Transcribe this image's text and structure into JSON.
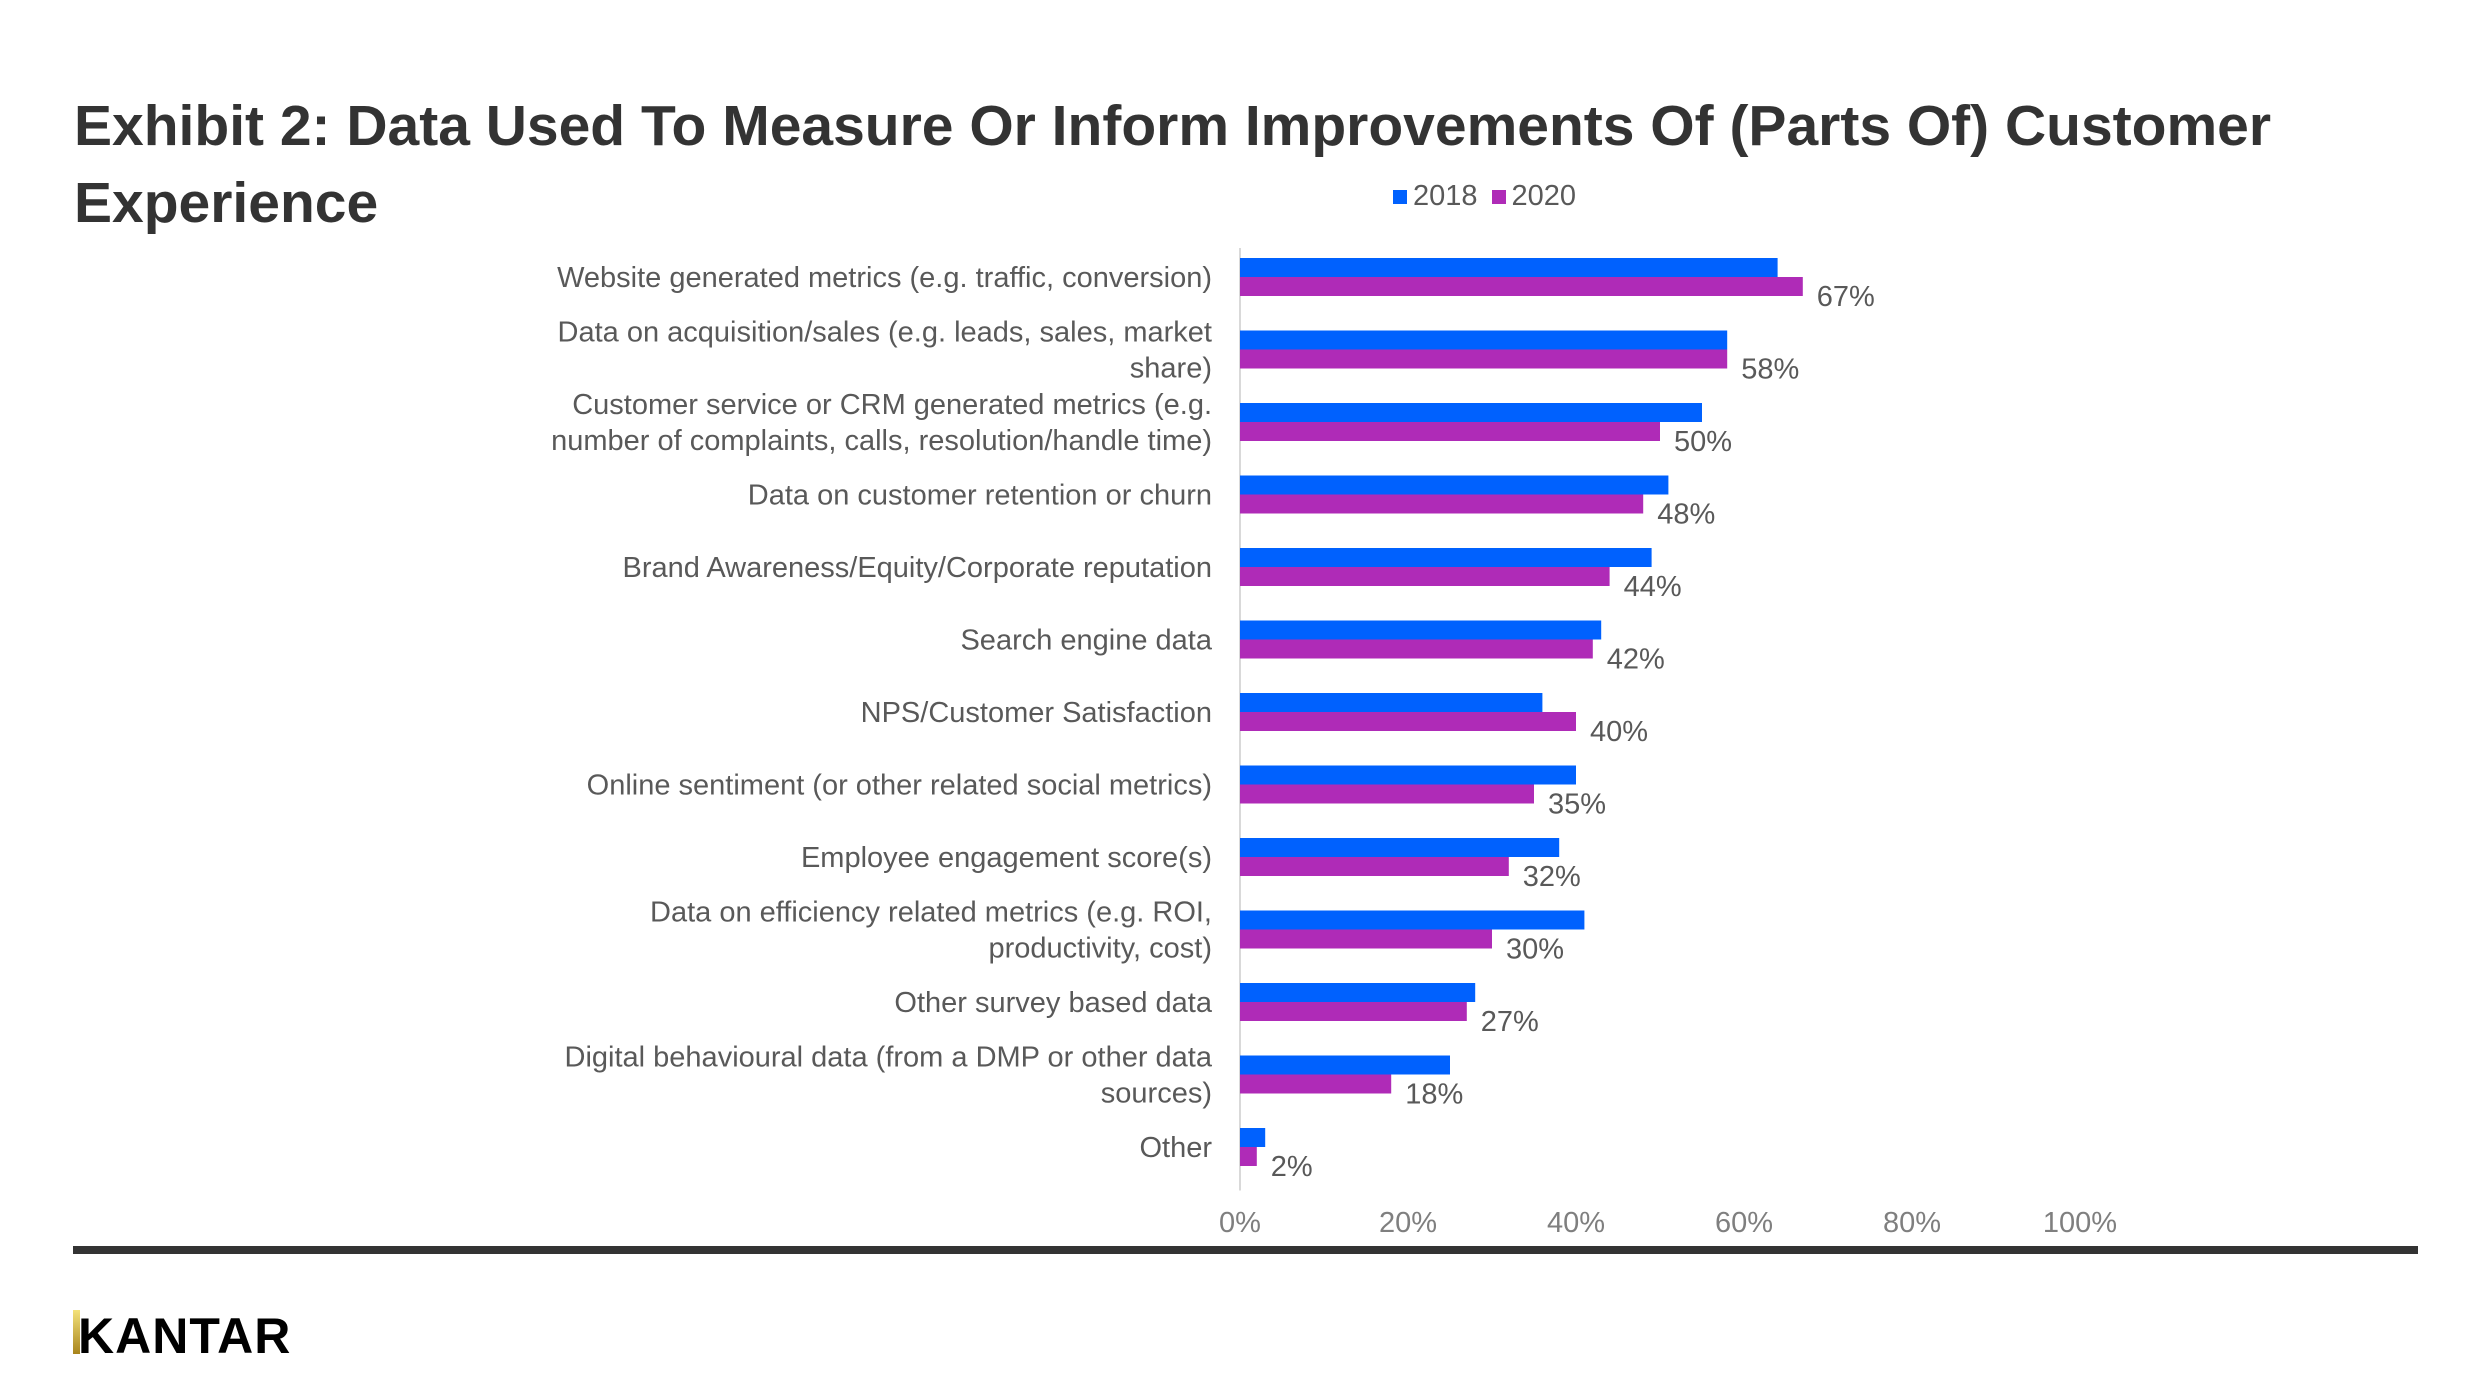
{
  "title": "Exhibit 2: Data Used To Measure Or Inform Improvements Of (Parts Of) Customer Experience",
  "logo": "KANTAR",
  "chart_data": {
    "type": "bar",
    "orientation": "horizontal",
    "title": "Exhibit 2: Data Used To Measure Or Inform Improvements Of (Parts Of) Customer Experience",
    "categories": [
      "Website generated metrics (e.g. traffic, conversion)",
      "Data on acquisition/sales (e.g. leads, sales, market share)",
      "Customer service or CRM generated metrics (e.g. number of complaints, calls, resolution/handle time)",
      "Data on customer retention or churn",
      "Brand Awareness/Equity/Corporate reputation",
      "Search engine data",
      "NPS/Customer Satisfaction",
      "Online sentiment (or other related social metrics)",
      "Employee engagement score(s)",
      "Data on efficiency related metrics (e.g. ROI, productivity, cost)",
      "Other survey based data",
      "Digital behavioural data (from a DMP or other data sources)",
      "Other"
    ],
    "category_lines": [
      [
        "Website generated metrics (e.g. traffic, conversion)"
      ],
      [
        "Data on acquisition/sales (e.g. leads, sales, market",
        "share)"
      ],
      [
        "Customer service or CRM generated metrics (e.g.",
        "number of complaints, calls, resolution/handle time)"
      ],
      [
        "Data on customer retention or churn"
      ],
      [
        "Brand Awareness/Equity/Corporate reputation"
      ],
      [
        "Search engine data"
      ],
      [
        "NPS/Customer Satisfaction"
      ],
      [
        "Online sentiment (or other related social metrics)"
      ],
      [
        "Employee engagement score(s)"
      ],
      [
        "Data on efficiency related metrics (e.g. ROI,",
        "productivity, cost)"
      ],
      [
        "Other survey based data"
      ],
      [
        "Digital behavioural data (from a DMP or other data",
        "sources)"
      ],
      [
        "Other"
      ]
    ],
    "series": [
      {
        "name": "2018",
        "color": "#0061FE",
        "values": [
          64,
          58,
          55,
          51,
          49,
          43,
          36,
          40,
          38,
          41,
          28,
          25,
          3
        ]
      },
      {
        "name": "2020",
        "color": "#AF2BB7",
        "values": [
          67,
          58,
          50,
          48,
          44,
          42,
          40,
          35,
          32,
          30,
          27,
          18,
          2
        ],
        "data_labels": [
          "67%",
          "58%",
          "50%",
          "48%",
          "44%",
          "42%",
          "40%",
          "35%",
          "32%",
          "30%",
          "27%",
          "18%",
          "2%"
        ]
      }
    ],
    "xlim": [
      0,
      100
    ],
    "x_ticks": [
      "0%",
      "20%",
      "40%",
      "60%",
      "80%",
      "100%"
    ],
    "xlabel": "",
    "ylabel": "",
    "grid": false,
    "legend": "top"
  }
}
